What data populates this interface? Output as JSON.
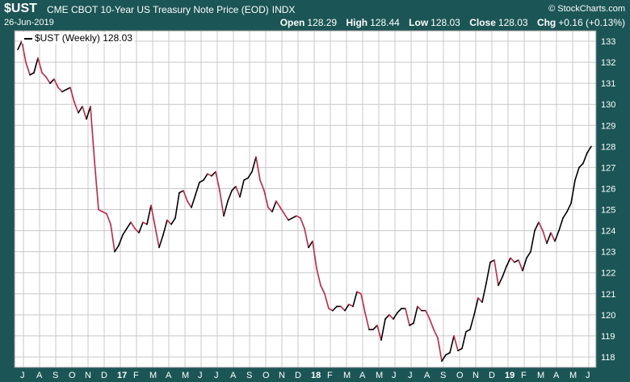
{
  "header": {
    "symbol": "$UST",
    "title": "CME CBOT 10-Year US Treasury Note Price (EOD)",
    "exchange": "INDX",
    "brand": "© StockCharts.com",
    "date": "26-Jun-2019",
    "open_label": "Open",
    "open": "128.29",
    "high_label": "High",
    "high": "128.44",
    "low_label": "Low",
    "low": "128.03",
    "close_label": "Close",
    "close": "128.03",
    "chg_label": "Chg",
    "chg": "+0.16 (+0.13%)"
  },
  "legend": {
    "label": "$UST (Weekly) 128.03"
  },
  "colors": {
    "background": "#1b5555",
    "plot": "#ffffff",
    "up": "#000000",
    "down": "#cc2244",
    "grid": "#c8c8c8"
  },
  "chart_data": {
    "type": "line",
    "series_name": "$UST (Weekly)",
    "frequency": "weekly",
    "ylim": [
      117.5,
      133.5
    ],
    "y_ticks": [
      118,
      119,
      120,
      121,
      122,
      123,
      124,
      125,
      126,
      127,
      128,
      129,
      130,
      131,
      132,
      133
    ],
    "x_ticks": [
      "J",
      "A",
      "S",
      "O",
      "N",
      "D",
      "17",
      "F",
      "M",
      "A",
      "M",
      "J",
      "J",
      "A",
      "S",
      "O",
      "N",
      "D",
      "18",
      "F",
      "M",
      "A",
      "M",
      "J",
      "J",
      "A",
      "S",
      "O",
      "N",
      "D",
      "19",
      "F",
      "M",
      "A",
      "M",
      "J"
    ],
    "x_tick_bold": [
      "17",
      "18",
      "19"
    ],
    "grid": true,
    "values": [
      132.6,
      133.0,
      132.0,
      131.4,
      131.5,
      132.2,
      131.5,
      131.3,
      131.0,
      131.2,
      130.8,
      130.6,
      130.7,
      130.8,
      130.1,
      129.6,
      129.9,
      129.3,
      129.9,
      127.3,
      125.0,
      124.9,
      124.8,
      124.3,
      123.0,
      123.3,
      123.8,
      124.1,
      124.4,
      124.1,
      123.9,
      124.4,
      124.3,
      125.2,
      124.2,
      123.2,
      123.8,
      124.5,
      124.3,
      124.6,
      125.8,
      125.9,
      125.4,
      125.1,
      125.7,
      126.3,
      126.4,
      126.7,
      126.6,
      126.8,
      125.9,
      124.7,
      125.4,
      125.9,
      126.1,
      125.6,
      126.4,
      126.5,
      126.8,
      127.5,
      126.4,
      125.9,
      125.1,
      124.9,
      125.4,
      125.1,
      124.8,
      124.5,
      124.6,
      124.7,
      124.6,
      124.1,
      123.2,
      123.5,
      122.2,
      121.4,
      121.0,
      120.3,
      120.2,
      120.4,
      120.4,
      120.2,
      120.5,
      120.4,
      121.1,
      121.0,
      120.1,
      119.3,
      119.3,
      119.5,
      118.8,
      119.8,
      120.0,
      119.8,
      120.1,
      120.3,
      120.3,
      119.5,
      119.6,
      120.4,
      120.2,
      120.2,
      119.8,
      119.3,
      118.9,
      117.8,
      118.1,
      118.2,
      119.0,
      118.3,
      118.4,
      119.2,
      119.3,
      120.0,
      120.8,
      120.6,
      121.5,
      122.5,
      122.6,
      121.4,
      121.8,
      122.3,
      122.7,
      122.5,
      122.6,
      122.1,
      122.7,
      123.0,
      124.0,
      124.4,
      124.0,
      123.4,
      123.9,
      123.5,
      124.0,
      124.6,
      124.9,
      125.3,
      126.4,
      127.0,
      127.2,
      127.7,
      128.0
    ]
  }
}
